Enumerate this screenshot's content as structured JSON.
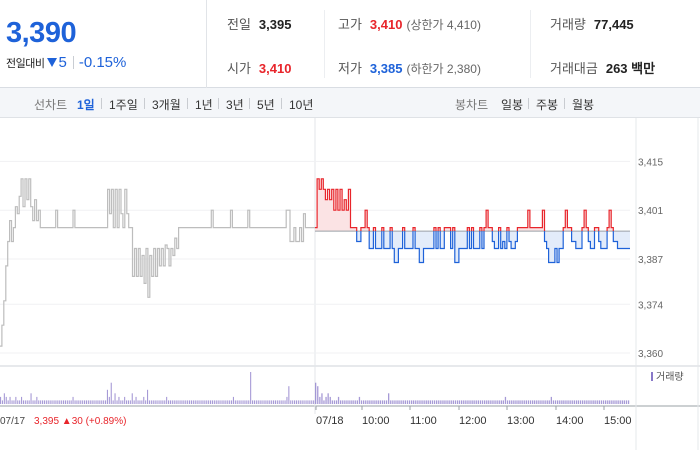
{
  "quote": {
    "price": "3,390",
    "change_label": "전일대비",
    "change_abs": "5",
    "change_pct": "-0.15%"
  },
  "stats": {
    "prev_close": {
      "label": "전일",
      "value": "3,395"
    },
    "open": {
      "label": "시가",
      "value": "3,410"
    },
    "high": {
      "label": "고가",
      "value": "3,410",
      "sub": "(상한가 4,410)"
    },
    "low": {
      "label": "저가",
      "value": "3,385",
      "sub": "(하한가 2,380)"
    },
    "volume": {
      "label": "거래량",
      "value": "77,445"
    },
    "trade_amount": {
      "label": "거래대금",
      "value": "263 백만"
    }
  },
  "toolbar": {
    "line_title": "선차트",
    "periods": [
      "1일",
      "1주일",
      "3개월",
      "1년",
      "3년",
      "5년",
      "10년"
    ],
    "candle_title": "봉차트",
    "candles": [
      "일봉",
      "주봉",
      "월봉"
    ]
  },
  "colors": {
    "up": "#e8252b",
    "down": "#1e62d9",
    "prev_day": "#bdbdbd",
    "volume": "#8878c8"
  },
  "chart_data": {
    "type": "line",
    "baseline": 3395,
    "ylim": [
      3358,
      3420
    ],
    "yticks": [
      "3,415",
      "3,401",
      "3,387",
      "3,374",
      "3,360"
    ],
    "ytick_values": [
      3415,
      3401,
      3387,
      3374,
      3360
    ],
    "xticks": [
      "07/17",
      "07/18",
      "10:00",
      "11:00",
      "12:00",
      "13:00",
      "14:00",
      "15:00"
    ],
    "prev_day_label": "07/17",
    "prev_day_summary": "3,395 ▲30 (+0.89%)",
    "volume_legend": "거래량",
    "series": [
      {
        "date": "07/17",
        "values": [
          3362,
          3368,
          3375,
          3385,
          3392,
          3398,
          3392,
          3396,
          3402,
          3400,
          3405,
          3410,
          3402,
          3410,
          3404,
          3410,
          3402,
          3398,
          3404,
          3398,
          3401,
          3396,
          3396,
          3396,
          3396,
          3396,
          3396,
          3396,
          3396,
          3401,
          3396,
          3396,
          3396,
          3396,
          3396,
          3396,
          3396,
          3396,
          3401,
          3396,
          3396,
          3396,
          3396,
          3396,
          3396,
          3396,
          3396,
          3396,
          3396,
          3396,
          3396,
          3396,
          3396,
          3396,
          3396,
          3396,
          3407,
          3400,
          3407,
          3396,
          3407,
          3396,
          3407,
          3400,
          3396,
          3407,
          3400,
          3396,
          3396,
          3382,
          3390,
          3382,
          3390,
          3382,
          3388,
          3380,
          3390,
          3376,
          3388,
          3382,
          3390,
          3382,
          3390,
          3385,
          3390,
          3385,
          3391,
          3390,
          3385,
          3390,
          3388,
          3393,
          3390,
          3396,
          3396,
          3396,
          3396,
          3396,
          3396,
          3396,
          3396,
          3396,
          3396,
          3396,
          3396,
          3396,
          3396,
          3396,
          3396,
          3396,
          3401,
          3396,
          3396,
          3396,
          3396,
          3396,
          3396,
          3396,
          3396,
          3396,
          3401,
          3396,
          3396,
          3396,
          3396,
          3396,
          3396,
          3396,
          3396,
          3401,
          3396,
          3396,
          3396,
          3396,
          3396,
          3396,
          3396,
          3396,
          3396,
          3396,
          3396,
          3396,
          3396,
          3396,
          3396,
          3396,
          3396,
          3396,
          3396,
          3401,
          3401,
          3392,
          3392,
          3396,
          3392,
          3392,
          3396,
          3392,
          3400,
          3396,
          3396,
          3396,
          3396,
          3396
        ]
      },
      {
        "date": "07/18",
        "values": [
          3396,
          3410,
          3407,
          3410,
          3407,
          3404,
          3407,
          3404,
          3407,
          3401,
          3407,
          3401,
          3407,
          3401,
          3404,
          3401,
          3407,
          3396,
          3396,
          3396,
          3392,
          3392,
          3396,
          3396,
          3401,
          3396,
          3390,
          3390,
          3396,
          3390,
          3390,
          3390,
          3396,
          3390,
          3390,
          3390,
          3396,
          3390,
          3386,
          3386,
          3390,
          3390,
          3396,
          3390,
          3390,
          3390,
          3390,
          3396,
          3390,
          3390,
          3386,
          3386,
          3390,
          3390,
          3390,
          3390,
          3390,
          3396,
          3390,
          3396,
          3390,
          3390,
          3396,
          3396,
          3396,
          3390,
          3396,
          3386,
          3386,
          3390,
          3390,
          3390,
          3390,
          3396,
          3390,
          3396,
          3390,
          3390,
          3390,
          3396,
          3390,
          3396,
          3401,
          3396,
          3396,
          3392,
          3390,
          3390,
          3396,
          3390,
          3392,
          3390,
          3396,
          3392,
          3390,
          3390,
          3392,
          3396,
          3396,
          3396,
          3396,
          3396,
          3401,
          3396,
          3396,
          3396,
          3396,
          3396,
          3396,
          3401,
          3392,
          3390,
          3386,
          3386,
          3386,
          3390,
          3386,
          3390,
          3390,
          3396,
          3401,
          3396,
          3396,
          3392,
          3392,
          3390,
          3390,
          3390,
          3396,
          3401,
          3396,
          3392,
          3390,
          3390,
          3396,
          3396,
          3392,
          3390,
          3390,
          3390,
          3396,
          3401,
          3396,
          3392,
          3392,
          3390,
          3390,
          3390,
          3390,
          3390,
          3390
        ]
      }
    ],
    "volume": [
      [
        2,
        1,
        3,
        2,
        1,
        2,
        1,
        1,
        2,
        1,
        1,
        2,
        1,
        1,
        1,
        1,
        3,
        1,
        1,
        2,
        1,
        1,
        1,
        1,
        1,
        1,
        1,
        1,
        1,
        1,
        1,
        1,
        1,
        1,
        1,
        1,
        1,
        1,
        2,
        1,
        1,
        1,
        1,
        1,
        1,
        1,
        1,
        1,
        1,
        1,
        1,
        1,
        1,
        1,
        1,
        1,
        4,
        2,
        6,
        1,
        3,
        1,
        2,
        1,
        1,
        2,
        1,
        1,
        1,
        3,
        1,
        2,
        1,
        1,
        1,
        2,
        1,
        4,
        1,
        1,
        1,
        1,
        1,
        1,
        1,
        1,
        1,
        2,
        1,
        1,
        1,
        1,
        1,
        1,
        1,
        1,
        1,
        1,
        1,
        1,
        1,
        1,
        1,
        1,
        1,
        1,
        1,
        1,
        1,
        1,
        1,
        1,
        1,
        1,
        1,
        1,
        1,
        1,
        1,
        1,
        1,
        1,
        2,
        1,
        1,
        1,
        1,
        1,
        1,
        1,
        1,
        9,
        1,
        1,
        1,
        1,
        1,
        1,
        1,
        1,
        1,
        1,
        1,
        1,
        1,
        1,
        1,
        1,
        1,
        1,
        2,
        5,
        1,
        1,
        1,
        1,
        1,
        1,
        1,
        1,
        1,
        1,
        1,
        1,
        1
      ],
      [
        6,
        5,
        2,
        3,
        1,
        2,
        3,
        2,
        1,
        1,
        1,
        2,
        1,
        1,
        1,
        1,
        1,
        1,
        1,
        1,
        1,
        2,
        1,
        1,
        1,
        1,
        1,
        1,
        1,
        1,
        1,
        1,
        1,
        1,
        1,
        3,
        1,
        1,
        1,
        1,
        1,
        1,
        1,
        1,
        1,
        1,
        1,
        1,
        1,
        1,
        1,
        1,
        1,
        1,
        1,
        1,
        1,
        1,
        1,
        1,
        1,
        1,
        1,
        1,
        1,
        1,
        1,
        1,
        1,
        1,
        1,
        1,
        1,
        1,
        1,
        1,
        1,
        1,
        1,
        1,
        1,
        1,
        1,
        1,
        1,
        1,
        1,
        1,
        1,
        1,
        1,
        2,
        1,
        1,
        1,
        1,
        1,
        1,
        1,
        1,
        1,
        1,
        1,
        1,
        1,
        1,
        1,
        1,
        1,
        1,
        1,
        1,
        1,
        2,
        1,
        1,
        1,
        1,
        1,
        1,
        1,
        1,
        1,
        1,
        1,
        1,
        1,
        1,
        1,
        1,
        1,
        1,
        1,
        1,
        1,
        1,
        1,
        1,
        1,
        1,
        1,
        1,
        1,
        1,
        1,
        1,
        1,
        1,
        1,
        1,
        1
      ]
    ]
  }
}
